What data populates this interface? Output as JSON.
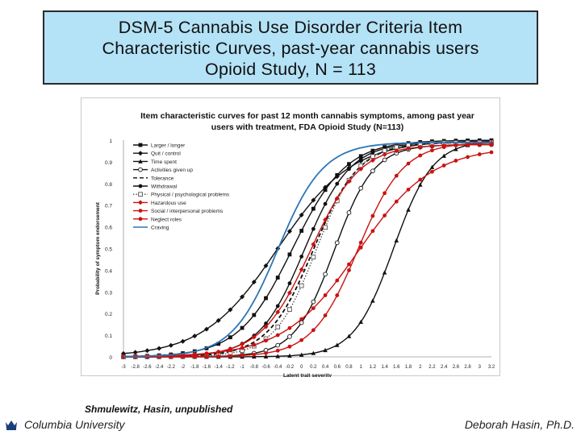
{
  "slide": {
    "title_lines": [
      "DSM-5 Cannabis Use Disorder Criteria Item",
      "Characteristic Curves, past-year cannabis users",
      "Opioid Study, N = 113"
    ],
    "citation": "Shmulewitz, Hasin, unpublished",
    "footer_left": "Columbia University",
    "footer_right": "Deborah Hasin, Ph.D.",
    "crown_icon": "columbia-crown-icon"
  },
  "chart_data": {
    "type": "line",
    "title_lines": [
      "Item characteristic curves for past 12 month cannabis symptoms, among past year",
      "users with treatment, FDA Opioid Study (N=113)"
    ],
    "xlabel": "Latent trait severity",
    "ylabel": "Probability of symptom endorsement",
    "xlim": [
      -3,
      3.2
    ],
    "ylim": [
      0,
      1
    ],
    "x_tick_labels": [
      "-3",
      "-2.8",
      "-2.6",
      "-2.4",
      "-2.2",
      "-2",
      "-1.8",
      "-1.6",
      "-1.4",
      "-1.2",
      "-1",
      "-0.8",
      "-0.6",
      "-0.4",
      "-0.2",
      "0",
      "0.2",
      "0.4",
      "0.6",
      "0.8",
      "1",
      "1.2",
      "1.4",
      "1.6",
      "1.8",
      "2",
      "2.2",
      "2.4",
      "2.6",
      "2.8",
      "3",
      "3.2"
    ],
    "y_ticks": [
      0,
      0.1,
      0.2,
      0.3,
      0.4,
      0.5,
      0.6,
      0.7,
      0.8,
      0.9,
      1
    ],
    "legend_position": "top-left",
    "grid": false,
    "series": [
      {
        "name": "Larger / longer",
        "color": "#111111",
        "marker": "square",
        "dash": "solid",
        "a": 2.2,
        "b": -0.15,
        "top": 1.0
      },
      {
        "name": "Quit / control",
        "color": "#111111",
        "marker": "diamond",
        "dash": "solid",
        "a": 1.6,
        "b": -0.4,
        "top": 1.0
      },
      {
        "name": "Time spent",
        "color": "#111111",
        "marker": "triangle",
        "dash": "solid",
        "a": 3.0,
        "b": 1.55,
        "top": 1.0
      },
      {
        "name": "Activities given up",
        "color": "#111111",
        "marker": "circle-open",
        "dash": "solid",
        "a": 3.0,
        "b": 0.55,
        "top": 0.98
      },
      {
        "name": "Tolerance",
        "color": "#111111",
        "marker": "none",
        "dash": "dash",
        "a": 2.6,
        "b": 0.2,
        "top": 0.99
      },
      {
        "name": "Withdrawal",
        "color": "#111111",
        "marker": "circle",
        "dash": "solid",
        "a": 2.6,
        "b": 0.05,
        "top": 0.99
      },
      {
        "name": "Physical / psychological problems",
        "color": "#555555",
        "marker": "square-open",
        "dash": "dot",
        "a": 2.8,
        "b": 0.25,
        "top": 0.99
      },
      {
        "name": "Hazardous use",
        "color": "#cc1111",
        "marker": "diamond",
        "dash": "solid",
        "a": 2.4,
        "b": 0.15,
        "top": 0.98
      },
      {
        "name": "Social / interpersonal problems",
        "color": "#cc1111",
        "marker": "circle",
        "dash": "solid",
        "a": 2.6,
        "b": 0.95,
        "top": 0.99
      },
      {
        "name": "Neglect roles",
        "color": "#cc1111",
        "marker": "circle",
        "dash": "solid",
        "a": 1.6,
        "b": 0.95,
        "top": 0.97
      },
      {
        "name": "Craving",
        "color": "#2e75b6",
        "marker": "none",
        "dash": "solid",
        "a": 2.6,
        "b": -0.4,
        "top": 0.99
      }
    ]
  }
}
